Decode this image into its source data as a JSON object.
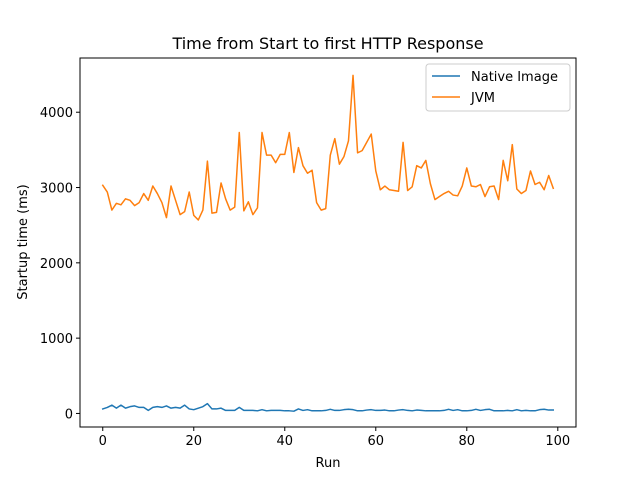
{
  "chart_data": {
    "type": "line",
    "title": "Time from Start to first HTTP Response",
    "xlabel": "Run",
    "ylabel": "Startup time (ms)",
    "xlim": [
      -5,
      104
    ],
    "ylim": [
      -180,
      4720
    ],
    "x_ticks": [
      0,
      20,
      40,
      60,
      80,
      100
    ],
    "y_ticks": [
      0,
      1000,
      2000,
      3000,
      4000
    ],
    "grid": false,
    "legend_position": "top-right",
    "series": [
      {
        "name": "Native Image",
        "color": "#1f77b4",
        "x": [
          0,
          1,
          2,
          3,
          4,
          5,
          6,
          7,
          8,
          9,
          10,
          11,
          12,
          13,
          14,
          15,
          16,
          17,
          18,
          19,
          20,
          21,
          22,
          23,
          24,
          25,
          26,
          27,
          28,
          29,
          30,
          31,
          32,
          33,
          34,
          35,
          36,
          37,
          38,
          39,
          40,
          41,
          42,
          43,
          44,
          45,
          46,
          47,
          48,
          49,
          50,
          51,
          52,
          53,
          54,
          55,
          56,
          57,
          58,
          59,
          60,
          61,
          62,
          63,
          64,
          65,
          66,
          67,
          68,
          69,
          70,
          71,
          72,
          73,
          74,
          75,
          76,
          77,
          78,
          79,
          80,
          81,
          82,
          83,
          84,
          85,
          86,
          87,
          88,
          89,
          90,
          91,
          92,
          93,
          94,
          95,
          96,
          97,
          98,
          99
        ],
        "values": [
          60,
          80,
          110,
          70,
          110,
          70,
          90,
          100,
          80,
          80,
          40,
          80,
          90,
          80,
          100,
          70,
          80,
          70,
          110,
          60,
          50,
          70,
          90,
          130,
          60,
          60,
          70,
          40,
          40,
          40,
          80,
          40,
          40,
          40,
          35,
          50,
          35,
          40,
          40,
          40,
          35,
          35,
          30,
          60,
          40,
          50,
          35,
          35,
          35,
          40,
          55,
          40,
          40,
          50,
          55,
          50,
          35,
          35,
          45,
          50,
          40,
          40,
          45,
          35,
          35,
          45,
          50,
          40,
          35,
          45,
          40,
          35,
          35,
          35,
          35,
          40,
          55,
          40,
          50,
          35,
          35,
          40,
          55,
          40,
          50,
          55,
          35,
          35,
          35,
          40,
          35,
          50,
          35,
          40,
          35,
          35,
          50,
          55,
          45,
          45
        ]
      },
      {
        "name": "JVM",
        "color": "#ff7f0e",
        "x": [
          0,
          1,
          2,
          3,
          4,
          5,
          6,
          7,
          8,
          9,
          10,
          11,
          12,
          13,
          14,
          15,
          16,
          17,
          18,
          19,
          20,
          21,
          22,
          23,
          24,
          25,
          26,
          27,
          28,
          29,
          30,
          31,
          32,
          33,
          34,
          35,
          36,
          37,
          38,
          39,
          40,
          41,
          42,
          43,
          44,
          45,
          46,
          47,
          48,
          49,
          50,
          51,
          52,
          53,
          54,
          55,
          56,
          57,
          58,
          59,
          60,
          61,
          62,
          63,
          64,
          65,
          66,
          67,
          68,
          69,
          70,
          71,
          72,
          73,
          74,
          75,
          76,
          77,
          78,
          79,
          80,
          81,
          82,
          83,
          84,
          85,
          86,
          87,
          88,
          89,
          90,
          91,
          92,
          93,
          94,
          95,
          96,
          97,
          98,
          99
        ],
        "values": [
          3030,
          2940,
          2700,
          2790,
          2770,
          2850,
          2830,
          2760,
          2800,
          2920,
          2830,
          3020,
          2920,
          2800,
          2600,
          3020,
          2830,
          2640,
          2680,
          2940,
          2630,
          2570,
          2700,
          3350,
          2660,
          2670,
          3060,
          2850,
          2700,
          2740,
          3730,
          2690,
          2810,
          2640,
          2730,
          3730,
          3430,
          3430,
          3330,
          3440,
          3440,
          3730,
          3200,
          3530,
          3290,
          3190,
          3230,
          2800,
          2700,
          2720,
          3430,
          3650,
          3310,
          3410,
          3620,
          4490,
          3460,
          3490,
          3600,
          3710,
          3220,
          2970,
          3020,
          2970,
          2960,
          2950,
          3600,
          2960,
          3010,
          3290,
          3260,
          3360,
          3050,
          2840,
          2880,
          2920,
          2950,
          2900,
          2890,
          3020,
          3260,
          3020,
          3010,
          3040,
          2880,
          3010,
          3020,
          2840,
          3360,
          3090,
          3570,
          2980,
          2920,
          2960,
          3220,
          3040,
          3070,
          2970,
          3160,
          2990
        ]
      }
    ]
  }
}
